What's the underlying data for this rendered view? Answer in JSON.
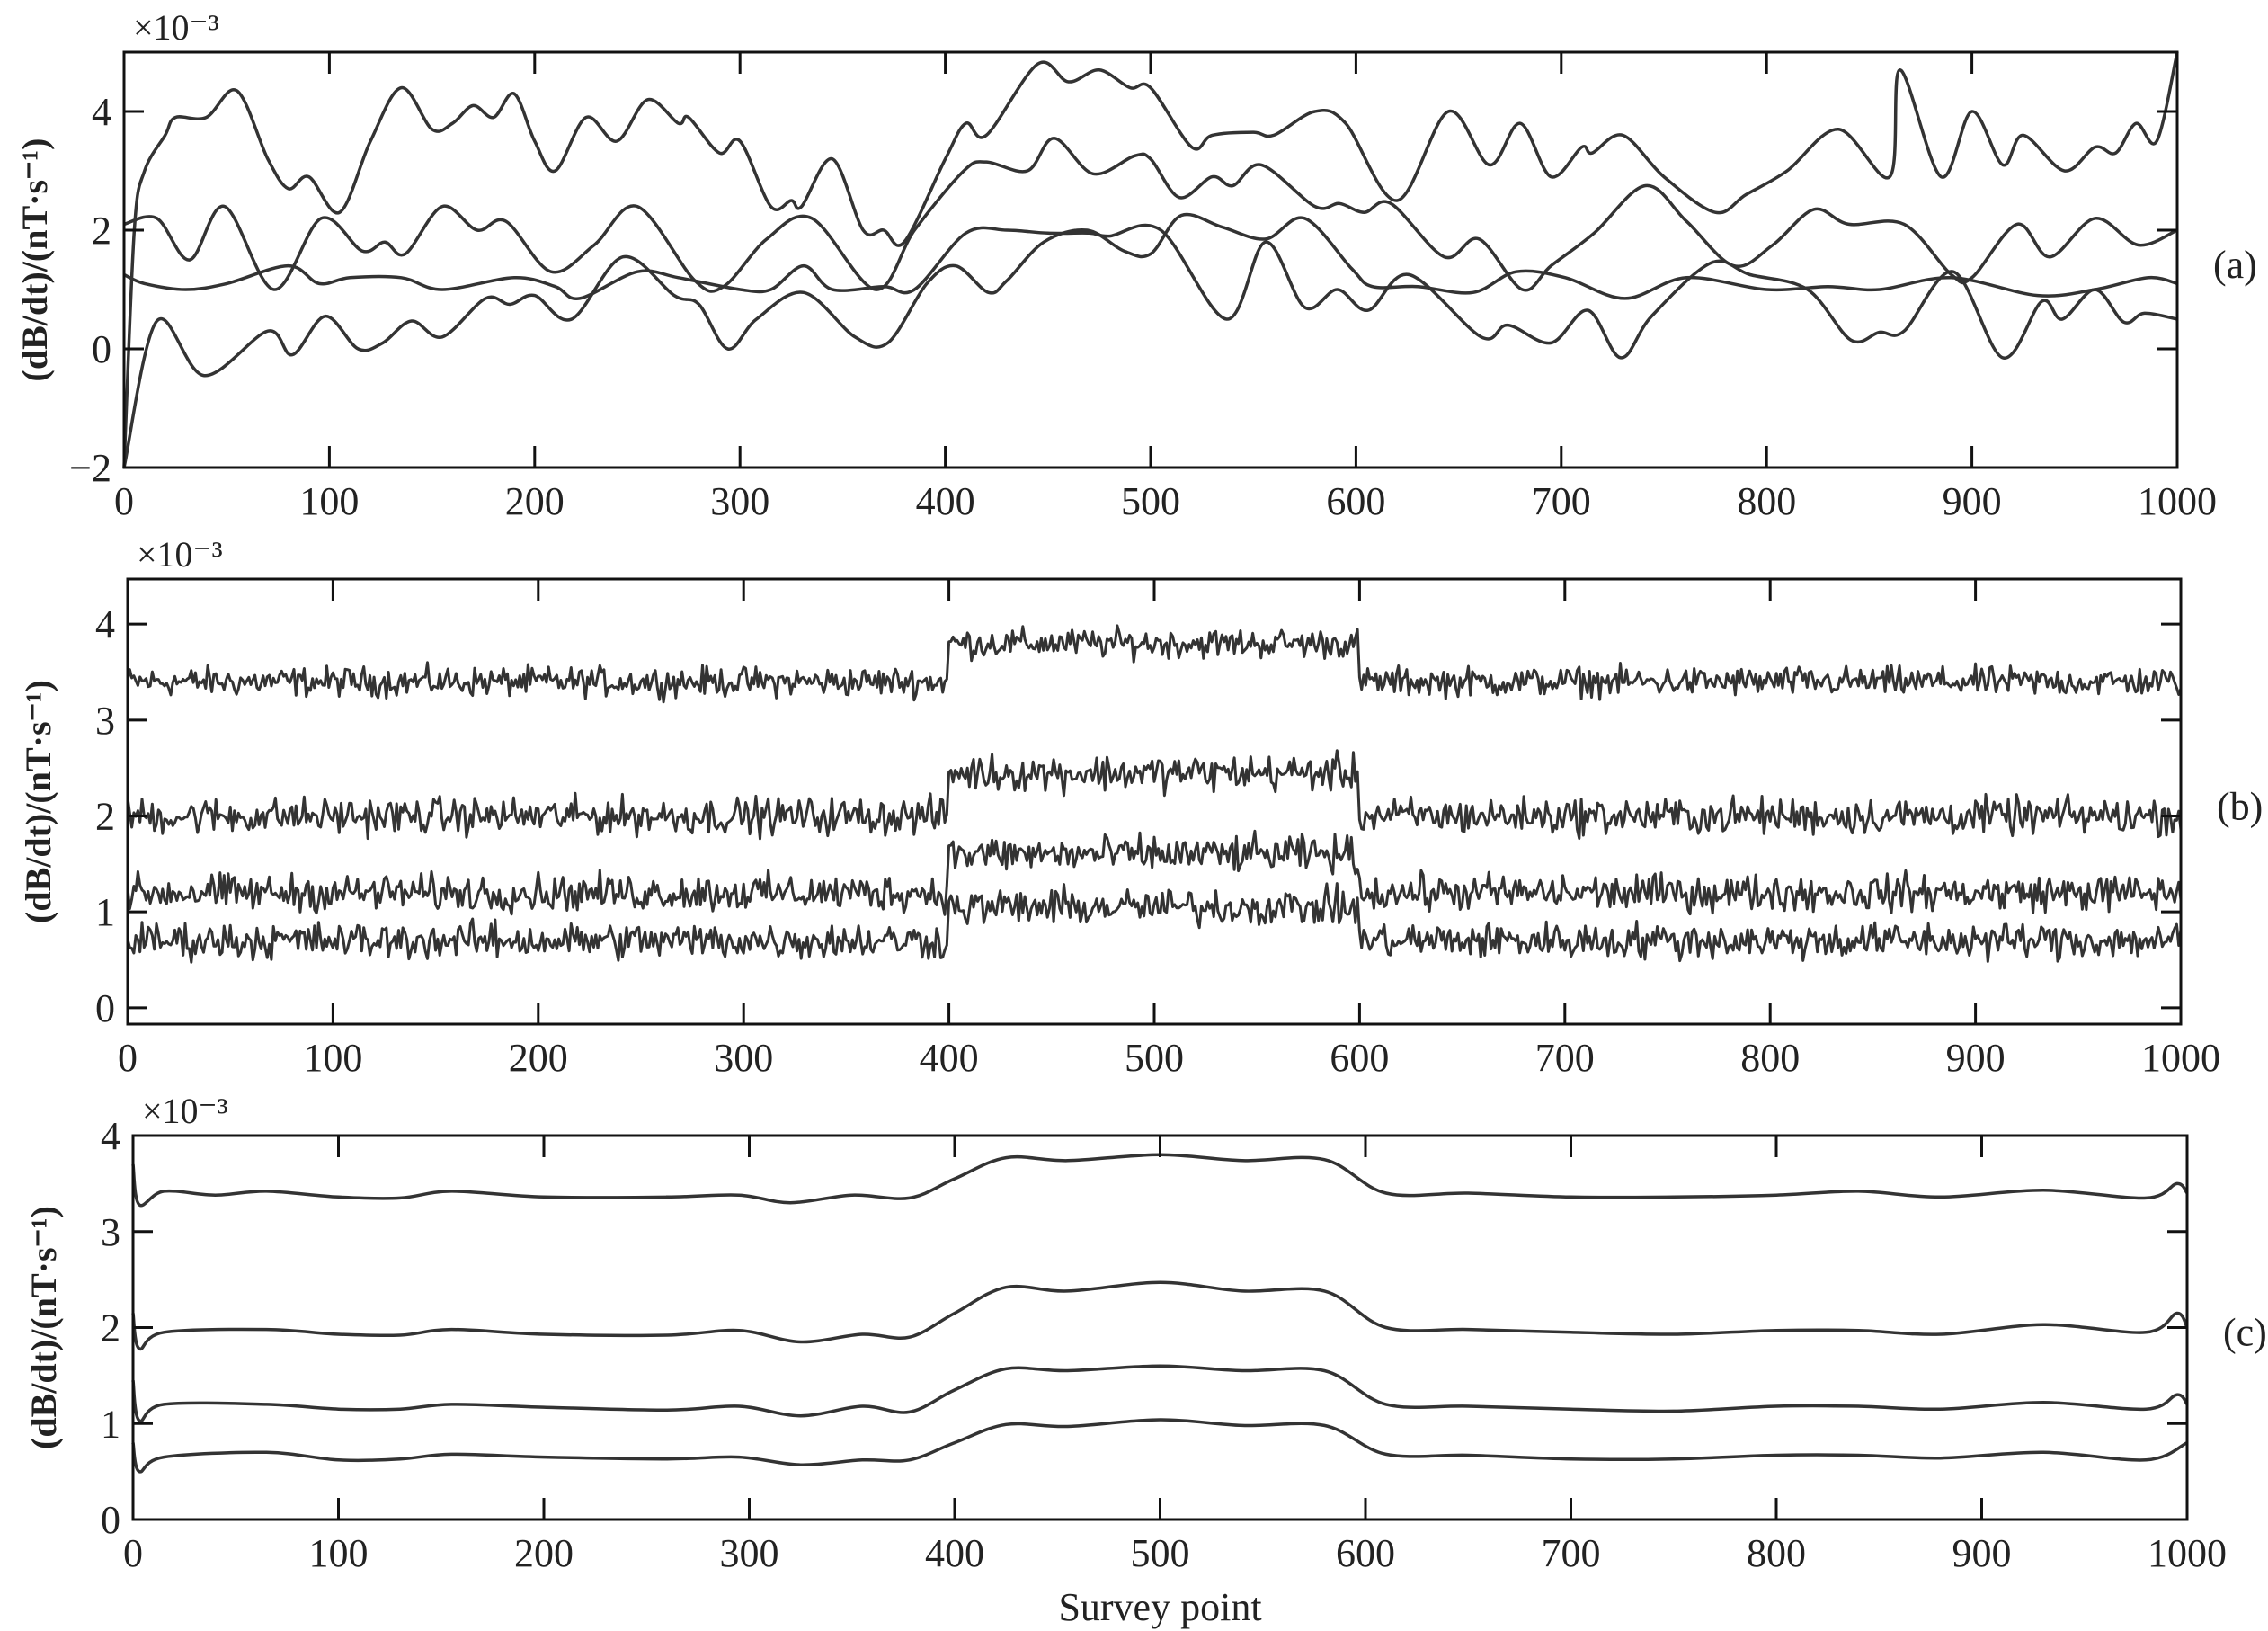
{
  "chart_data": [
    {
      "type": "line",
      "panel_label": "(a)",
      "ylabel": "(dB/dt)/(nT·s⁻¹)",
      "y_multiplier": "×10⁻³",
      "xlabel": "",
      "xlim": [
        0,
        1000
      ],
      "ylim": [
        -2,
        5
      ],
      "xticks": [
        0,
        100,
        200,
        300,
        400,
        500,
        600,
        700,
        800,
        900,
        1000
      ],
      "yticks": [
        -2,
        0,
        2,
        4
      ],
      "grid": false,
      "line_color": "#333333",
      "series": [
        {
          "x": [
            0,
            5,
            10,
            20,
            25,
            40,
            55,
            70,
            80,
            90,
            105,
            120,
            135,
            150,
            160,
            170,
            180,
            190,
            200,
            210,
            225,
            240,
            255,
            270,
            275,
            290,
            300,
            315,
            325,
            330,
            345,
            360,
            370,
            380,
            400,
            410,
            420,
            445,
            460,
            475,
            490,
            500,
            520,
            530,
            550,
            560,
            580,
            595,
            620,
            645,
            665,
            680,
            695,
            710,
            715,
            730,
            750,
            775,
            790,
            810,
            835,
            860,
            865,
            885,
            900,
            915,
            925,
            945,
            960,
            970,
            980,
            990,
            1000
          ],
          "y": [
            -2,
            2,
            3,
            3.6,
            3.9,
            3.9,
            4.35,
            3.2,
            2.7,
            2.9,
            2.3,
            3.5,
            4.4,
            3.7,
            3.8,
            4.1,
            3.9,
            4.3,
            3.5,
            3.0,
            3.9,
            3.5,
            4.2,
            3.8,
            3.9,
            3.3,
            3.5,
            2.4,
            2.5,
            2.4,
            3.2,
            2.0,
            2.0,
            1.8,
            3.2,
            3.8,
            3.6,
            4.8,
            4.5,
            4.7,
            4.4,
            4.4,
            3.4,
            3.6,
            3.65,
            3.6,
            4.0,
            3.8,
            2.5,
            4.0,
            3.1,
            3.8,
            2.9,
            3.4,
            3.3,
            3.6,
            2.9,
            2.3,
            2.6,
            3.0,
            3.7,
            2.9,
            4.7,
            2.9,
            4.0,
            3.1,
            3.6,
            3.0,
            3.4,
            3.3,
            3.8,
            3.5,
            5.0
          ]
        },
        {
          "x": [
            0,
            16,
            32,
            49,
            73,
            96,
            116,
            127,
            137,
            155,
            172,
            186,
            208,
            229,
            250,
            278,
            292,
            313,
            335,
            366,
            385,
            409,
            420,
            440,
            453,
            472,
            492,
            500,
            514,
            530,
            540,
            554,
            580,
            592,
            604,
            617,
            643,
            660,
            681,
            695,
            716,
            741,
            761,
            784,
            803,
            823,
            840,
            867,
            890,
            900,
            922,
            938,
            960,
            981,
            1000
          ],
          "y": [
            2.1,
            2.2,
            1.5,
            2.4,
            1.0,
            2.2,
            1.65,
            1.8,
            1.6,
            2.4,
            2.0,
            2.15,
            1.3,
            1.75,
            2.4,
            1.15,
            1.05,
            1.85,
            2.2,
            1.0,
            2.0,
            3.0,
            3.15,
            3.0,
            3.55,
            2.95,
            3.25,
            3.2,
            2.55,
            2.9,
            2.75,
            3.1,
            2.4,
            2.45,
            2.3,
            2.45,
            1.55,
            1.85,
            1.0,
            1.4,
            1.95,
            2.75,
            2.15,
            1.4,
            1.75,
            2.35,
            2.1,
            2.1,
            1.25,
            1.2,
            2.1,
            1.55,
            2.2,
            1.75,
            2.0
          ]
        },
        {
          "x": [
            0,
            16,
            39,
            70,
            82,
            98,
            114,
            126,
            140,
            155,
            176,
            188,
            200,
            218,
            243,
            268,
            280,
            294,
            308,
            331,
            356,
            372,
            391,
            405,
            421,
            430,
            448,
            469,
            487,
            500,
            515,
            535,
            556,
            575,
            598,
            608,
            630,
            657,
            678,
            702,
            731,
            761,
            800,
            830,
            855,
            890,
            932,
            960,
            986,
            1000
          ],
          "y": [
            -2,
            0.47,
            -0.45,
            0.3,
            -0.1,
            0.55,
            0,
            0.1,
            0.47,
            0.2,
            0.85,
            0.75,
            0.9,
            0.5,
            1.55,
            0.9,
            0.75,
            0,
            0.5,
            0.95,
            0.2,
            0.1,
            1.1,
            1.4,
            0.95,
            1.15,
            1.8,
            2.0,
            1.65,
            1.6,
            2.25,
            2.05,
            1.85,
            2.2,
            1.35,
            1.05,
            1.05,
            0.95,
            1.3,
            1.2,
            0.85,
            1.2,
            1.0,
            1.05,
            1.0,
            1.2,
            0.9,
            1.0,
            1.2,
            1.1
          ]
        },
        {
          "x": [
            0,
            10,
            30,
            50,
            80,
            95,
            110,
            135,
            155,
            190,
            210,
            222,
            250,
            270,
            300,
            315,
            331,
            345,
            370,
            385,
            410,
            430,
            450,
            470,
            480,
            505,
            537,
            556,
            575,
            591,
            606,
            626,
            661,
            674,
            695,
            713,
            729,
            744,
            773,
            792,
            820,
            841,
            855,
            867,
            891,
            915,
            934,
            944,
            960,
            974,
            984,
            1000
          ],
          "y": [
            1.25,
            1.1,
            1.0,
            1.1,
            1.4,
            1.1,
            1.2,
            1.2,
            1.0,
            1.2,
            1.05,
            0.85,
            1.3,
            1.2,
            1.0,
            1.0,
            1.4,
            1.0,
            1.05,
            1.0,
            1.95,
            2.0,
            1.95,
            1.95,
            1.9,
            2.0,
            0.5,
            1.8,
            0.7,
            1.0,
            0.65,
            1.25,
            0.2,
            0.4,
            0.1,
            0.65,
            -0.15,
            0.55,
            1.45,
            1.25,
            1.0,
            0.15,
            0.28,
            0.3,
            1.3,
            -0.15,
            0.8,
            0.5,
            1.0,
            0.45,
            0.6,
            0.5
          ]
        }
      ]
    },
    {
      "type": "line",
      "panel_label": "(b)",
      "ylabel": "(dB/dt)/(nT·s⁻¹)",
      "y_multiplier": "×10⁻³",
      "xlabel": "",
      "xlim": [
        0,
        1000
      ],
      "ylim": [
        -0.17,
        4.47
      ],
      "xticks": [
        0,
        100,
        200,
        300,
        400,
        500,
        600,
        700,
        800,
        900,
        1000
      ],
      "yticks": [
        0,
        1,
        2,
        3,
        4
      ],
      "grid": false,
      "line_color": "#333333",
      "noisy": true,
      "noise_amplitude": 0.28,
      "segments": [
        [
          0,
          400
        ],
        [
          400,
          600
        ],
        [
          600,
          1000
        ]
      ],
      "series": [
        {
          "levels": [
            3.4,
            3.8,
            3.4
          ]
        },
        {
          "levels": [
            2.0,
            2.45,
            2.0
          ]
        },
        {
          "levels": [
            1.2,
            1.6,
            1.2
          ]
        },
        {
          "levels": [
            0.7,
            1.05,
            0.7
          ]
        }
      ]
    },
    {
      "type": "line",
      "panel_label": "(c)",
      "ylabel": "(dB/dt)/(nT·s⁻¹)",
      "y_multiplier": "×10⁻³",
      "xlabel": "Survey point",
      "xlim": [
        0,
        1000
      ],
      "ylim": [
        0,
        4
      ],
      "xticks": [
        0,
        100,
        200,
        300,
        400,
        500,
        600,
        700,
        800,
        900,
        1000
      ],
      "yticks": [
        0,
        1,
        2,
        3,
        4
      ],
      "grid": false,
      "line_color": "#333333",
      "series": [
        {
          "x": [
            0,
            3,
            15,
            40,
            65,
            100,
            130,
            155,
            200,
            260,
            295,
            320,
            350,
            378,
            400,
            425,
            455,
            500,
            540,
            580,
            610,
            650,
            700,
            750,
            800,
            840,
            880,
            930,
            980,
            995,
            1000
          ],
          "y": [
            3.7,
            3.28,
            3.42,
            3.38,
            3.42,
            3.36,
            3.35,
            3.42,
            3.36,
            3.36,
            3.38,
            3.3,
            3.38,
            3.35,
            3.55,
            3.77,
            3.74,
            3.8,
            3.74,
            3.75,
            3.4,
            3.4,
            3.36,
            3.36,
            3.38,
            3.42,
            3.36,
            3.43,
            3.35,
            3.5,
            3.4
          ]
        },
        {
          "x": [
            0,
            3,
            15,
            65,
            100,
            130,
            155,
            200,
            260,
            295,
            325,
            355,
            378,
            400,
            425,
            455,
            500,
            540,
            580,
            610,
            650,
            700,
            750,
            800,
            840,
            880,
            930,
            980,
            995,
            1000
          ],
          "y": [
            2.15,
            1.78,
            1.95,
            1.98,
            1.93,
            1.92,
            1.98,
            1.93,
            1.92,
            1.97,
            1.85,
            1.93,
            1.9,
            2.15,
            2.42,
            2.38,
            2.47,
            2.38,
            2.38,
            2.0,
            1.98,
            1.95,
            1.93,
            1.97,
            1.97,
            1.93,
            2.03,
            1.95,
            2.15,
            2.0
          ]
        },
        {
          "x": [
            0,
            3,
            15,
            65,
            100,
            130,
            155,
            200,
            260,
            295,
            325,
            355,
            378,
            400,
            425,
            455,
            500,
            540,
            580,
            610,
            650,
            700,
            750,
            800,
            840,
            880,
            930,
            980,
            995,
            1000
          ],
          "y": [
            1.45,
            1.03,
            1.2,
            1.2,
            1.15,
            1.15,
            1.2,
            1.17,
            1.14,
            1.18,
            1.08,
            1.18,
            1.12,
            1.35,
            1.57,
            1.55,
            1.6,
            1.55,
            1.55,
            1.2,
            1.18,
            1.15,
            1.13,
            1.18,
            1.18,
            1.15,
            1.22,
            1.15,
            1.3,
            1.2
          ]
        },
        {
          "x": [
            0,
            3,
            15,
            65,
            100,
            130,
            155,
            200,
            260,
            295,
            325,
            355,
            378,
            400,
            425,
            455,
            500,
            540,
            580,
            610,
            650,
            700,
            750,
            800,
            840,
            880,
            930,
            980,
            1000
          ],
          "y": [
            0.8,
            0.5,
            0.65,
            0.7,
            0.62,
            0.63,
            0.68,
            0.65,
            0.63,
            0.65,
            0.57,
            0.62,
            0.62,
            0.8,
            0.99,
            0.97,
            1.04,
            0.98,
            0.98,
            0.68,
            0.67,
            0.63,
            0.63,
            0.67,
            0.67,
            0.64,
            0.7,
            0.62,
            0.8
          ]
        }
      ]
    }
  ]
}
